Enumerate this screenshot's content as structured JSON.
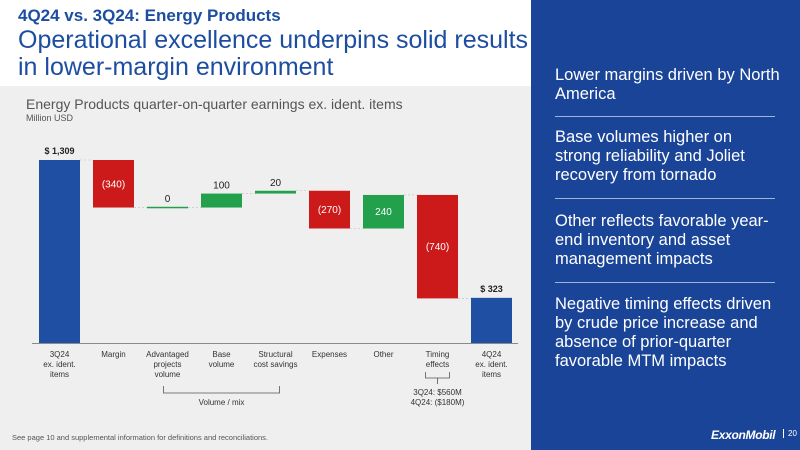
{
  "header": {
    "kicker": "4Q24 vs. 3Q24: Energy Products",
    "title": "Operational excellence underpins solid results in lower-margin environment"
  },
  "chart_data": {
    "type": "waterfall",
    "title": "Energy Products quarter-on-quarter earnings ex. ident. items",
    "unit": "Million USD",
    "steps": [
      {
        "category": "3Q24\nex. ident.\nitems",
        "value": 1309,
        "kind": "total",
        "label": "$ 1,309",
        "color": "#1f4fa3"
      },
      {
        "category": "Margin",
        "value": -340,
        "kind": "delta",
        "label": "(340)",
        "color": "#cc1a1a"
      },
      {
        "category": "Advantaged\nprojects\nvolume",
        "value": 0,
        "kind": "delta",
        "label": "0",
        "color": "#22a04b"
      },
      {
        "category": "Base\nvolume",
        "value": 100,
        "kind": "delta",
        "label": "100",
        "color": "#22a04b"
      },
      {
        "category": "Structural\ncost savings",
        "value": 20,
        "kind": "delta",
        "label": "20",
        "color": "#22a04b"
      },
      {
        "category": "Expenses",
        "value": -270,
        "kind": "delta",
        "label": "(270)",
        "color": "#cc1a1a"
      },
      {
        "category": "Other",
        "value": 240,
        "kind": "delta",
        "label": "240",
        "color": "#22a04b"
      },
      {
        "category": "Timing\neffects",
        "value": -740,
        "kind": "delta",
        "label": "(740)",
        "color": "#cc1a1a"
      },
      {
        "category": "4Q24\nex. ident.\nitems",
        "value": 323,
        "kind": "total",
        "label": "$ 323",
        "color": "#1f4fa3"
      }
    ],
    "group_label": "Volume / mix",
    "timing_notes": [
      "3Q24: $560M",
      "4Q24: ($180M)"
    ]
  },
  "footnote": "See page 10 and supplemental information for definitions and reconciliations.",
  "sidebar": {
    "bullets": [
      "Lower margins driven by North America",
      "Base volumes higher on strong reliability and Joliet recovery from tornado",
      "Other reflects favorable year-end inventory and asset management impacts",
      "Negative timing effects driven by crude price increase and absence of prior-quarter favorable MTM impacts"
    ],
    "logo": "ExxonMobil",
    "page_number": "20"
  }
}
